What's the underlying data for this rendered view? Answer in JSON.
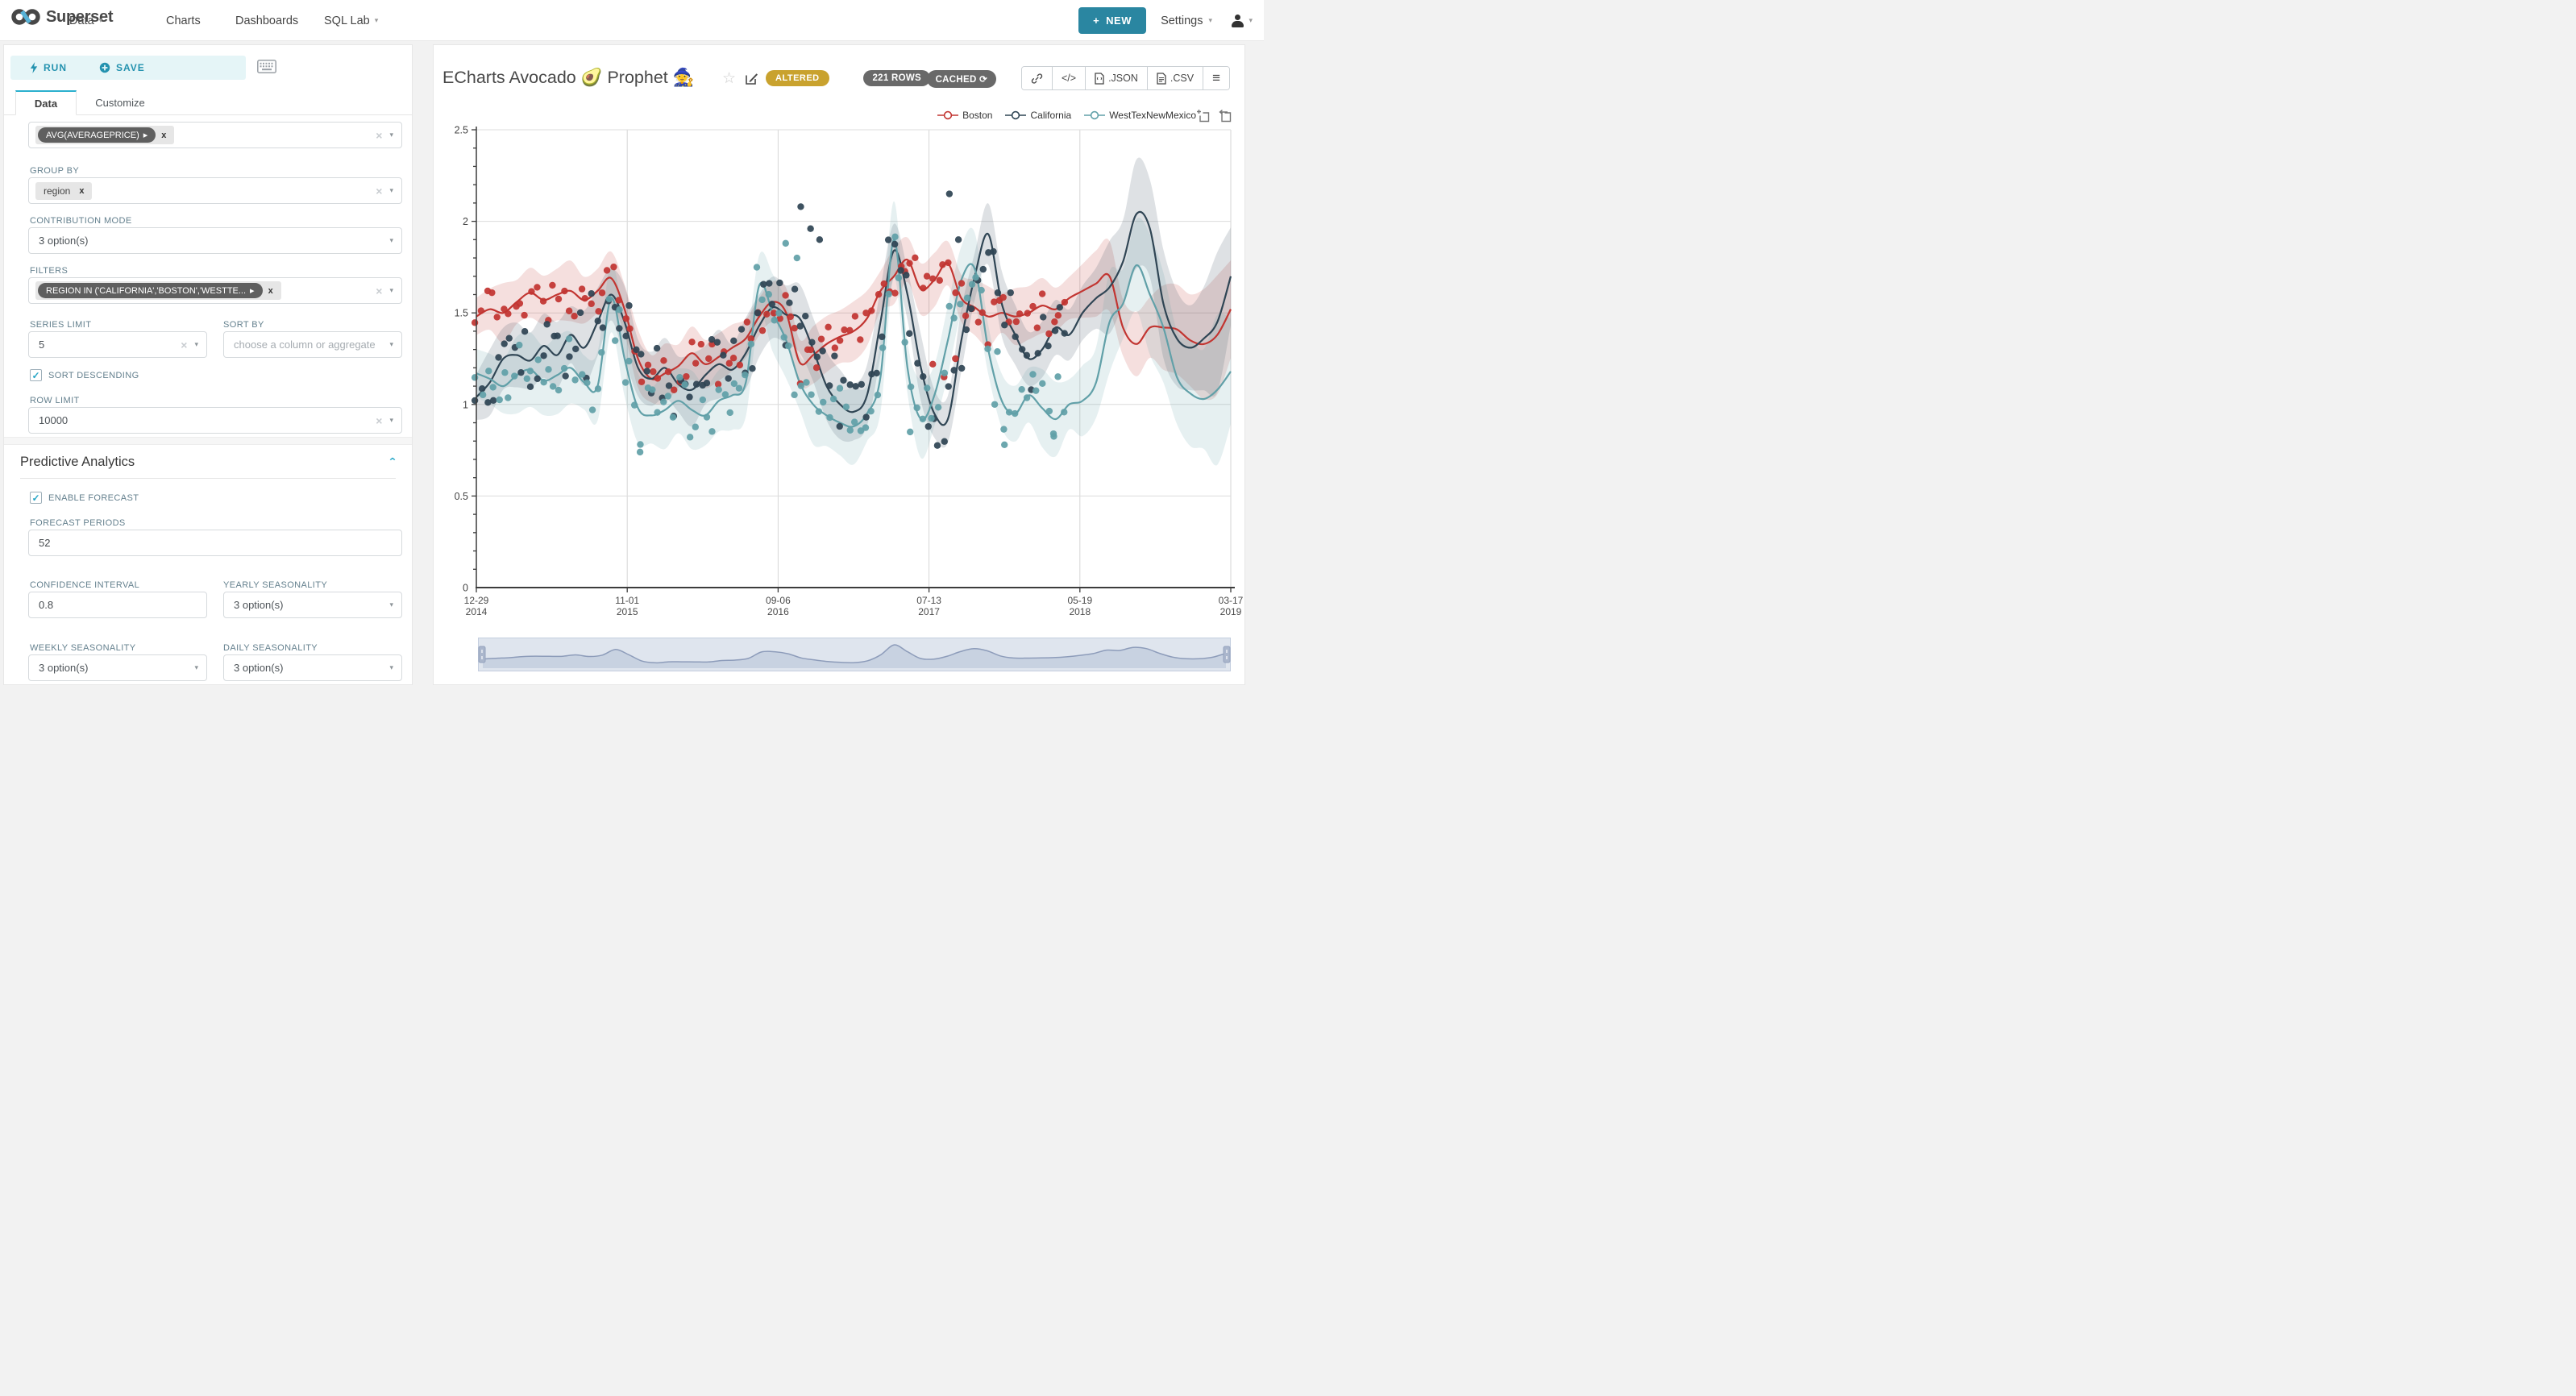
{
  "colors": {
    "accent": "#28a6c6",
    "new_button": "#2a86a1",
    "badge_gold": "#c9a22e",
    "pill_gray": "#696969",
    "boston": "#c23531",
    "california": "#2f4554",
    "westtex": "#61a0a8"
  },
  "icons": {
    "caret_down": "▾",
    "clear": "×",
    "remove_x": "x",
    "pill_arrow": "▸",
    "star": "☆",
    "refresh": "⟳",
    "code": "</​>",
    "menu": "≡",
    "chevron_up": "⌃",
    "check": "✓",
    "plus": "+"
  },
  "navbar": {
    "brand": "Superset",
    "items": [
      {
        "label": "Data",
        "caret": true
      },
      {
        "label": "Charts",
        "caret": false
      },
      {
        "label": "Dashboards",
        "caret": false
      },
      {
        "label": "SQL Lab",
        "caret": true
      }
    ],
    "new_button_label": "NEW",
    "settings_label": "Settings"
  },
  "panel": {
    "run_label": "RUN",
    "save_label": "SAVE",
    "tabs": [
      "Data",
      "Customize"
    ],
    "active_tab": "Data",
    "metrics": {
      "pill": "AVG(AVERAGEPRICE)"
    },
    "group_by": {
      "label": "GROUP BY",
      "pill": "region"
    },
    "contribution_mode": {
      "label": "CONTRIBUTION MODE",
      "value": "3 option(s)"
    },
    "filters": {
      "label": "FILTERS",
      "pill": "REGION IN ('CALIFORNIA','BOSTON','WESTTE..."
    },
    "series_limit": {
      "label": "SERIES LIMIT",
      "value": "5"
    },
    "sort_by": {
      "label": "SORT BY",
      "placeholder": "choose a column or aggregate"
    },
    "sort_descending": {
      "label": "SORT DESCENDING",
      "checked": true
    },
    "row_limit": {
      "label": "ROW LIMIT",
      "value": "10000"
    },
    "section_title": "Predictive Analytics",
    "enable_forecast": {
      "label": "ENABLE FORECAST",
      "checked": true
    },
    "forecast_periods": {
      "label": "FORECAST PERIODS",
      "value": "52"
    },
    "confidence_interval": {
      "label": "CONFIDENCE INTERVAL",
      "value": "0.8"
    },
    "yearly_seasonality": {
      "label": "YEARLY SEASONALITY",
      "value": "3 option(s)"
    },
    "weekly_seasonality": {
      "label": "WEEKLY SEASONALITY",
      "value": "3 option(s)"
    },
    "daily_seasonality": {
      "label": "DAILY SEASONALITY",
      "value": "3 option(s)"
    }
  },
  "header": {
    "title": "ECharts Avocado 🥑 Prophet 🧙",
    "badge": "ALTERED",
    "rows_pill": "221 ROWS",
    "cached_pill": "CACHED",
    "json_label": ".JSON",
    "csv_label": ".CSV"
  },
  "chart_data": {
    "type": "line",
    "subtype": "prophet-forecast: weekly scatter observations + smoothed trend line + confidence band per series",
    "title": "ECharts Avocado 🥑 Prophet 🧙",
    "ylabel": "AVG(AVERAGEPRICE)",
    "ylim": [
      0,
      2.5
    ],
    "y_ticks": [
      0,
      0.5,
      1,
      1.5,
      2,
      2.5
    ],
    "x_tick_labels": [
      [
        "12-29",
        "2014"
      ],
      [
        "11-01",
        "2015"
      ],
      [
        "09-06",
        "2016"
      ],
      [
        "07-13",
        "2017"
      ],
      [
        "05-19",
        "2018"
      ],
      [
        "03-17",
        "2019"
      ]
    ],
    "grid": true,
    "legend_position": "top-right",
    "legend": [
      "Boston",
      "California",
      "WestTexNewMexico"
    ],
    "observed_fraction": 0.78,
    "series": [
      {
        "name": "Boston",
        "color": "#c23531",
        "band_half_width": 0.13,
        "scatter_seed": 7,
        "scatter_amp": 0.17,
        "line": [
          1.48,
          1.52,
          1.5,
          1.56,
          1.61,
          1.57,
          1.6,
          1.62,
          1.57,
          1.62,
          1.69,
          1.52,
          1.25,
          1.14,
          1.17,
          1.21,
          1.28,
          1.22,
          1.26,
          1.31,
          1.36,
          1.48,
          1.56,
          1.5,
          1.23,
          1.27,
          1.33,
          1.37,
          1.4,
          1.47,
          1.62,
          1.7,
          1.79,
          1.63,
          1.68,
          1.77,
          1.58,
          1.53,
          1.48,
          1.5,
          1.48,
          1.5,
          1.54,
          1.52,
          1.58,
          1.62,
          1.66,
          1.7,
          1.42,
          1.33,
          1.42,
          1.42,
          1.41,
          1.35,
          1.33,
          1.38,
          1.52
        ],
        "scatter_outliers": [
          [
            0.605,
            1.22
          ],
          [
            0.62,
            1.15
          ],
          [
            0.635,
            1.25
          ]
        ]
      },
      {
        "name": "California",
        "color": "#2f4554",
        "band_half_width": 0.16,
        "scatter_seed": 13,
        "scatter_amp": 0.24,
        "line": [
          1.04,
          1.12,
          1.25,
          1.27,
          1.24,
          1.32,
          1.27,
          1.38,
          1.31,
          1.45,
          1.6,
          1.45,
          1.2,
          1.14,
          1.2,
          1.11,
          1.08,
          1.16,
          1.22,
          1.19,
          1.28,
          1.43,
          1.53,
          1.49,
          1.47,
          1.3,
          1.1,
          1.0,
          0.96,
          1.05,
          1.45,
          1.84,
          1.6,
          1.2,
          0.95,
          0.92,
          1.35,
          1.7,
          1.93,
          1.55,
          1.38,
          1.25,
          1.3,
          1.42,
          1.38,
          1.5,
          1.58,
          1.64,
          1.78,
          2.04,
          1.96,
          1.55,
          1.36,
          1.31,
          1.36,
          1.45,
          1.7
        ],
        "scatter_outliers": [
          [
            0.43,
            2.08
          ],
          [
            0.443,
            1.96
          ],
          [
            0.455,
            1.9
          ],
          [
            0.627,
            2.15
          ],
          [
            0.639,
            1.9
          ]
        ]
      },
      {
        "name": "WestTexNewMexico",
        "color": "#61a0a8",
        "band_half_width": 0.17,
        "scatter_seed": 29,
        "scatter_amp": 0.24,
        "line": [
          1.17,
          1.14,
          1.1,
          1.16,
          1.19,
          1.13,
          1.16,
          1.2,
          1.12,
          1.1,
          1.58,
          1.25,
          0.98,
          0.94,
          0.97,
          1.02,
          0.97,
          0.94,
          1.02,
          1.05,
          1.12,
          1.65,
          1.5,
          1.35,
          1.12,
          1.0,
          0.94,
          0.9,
          0.88,
          0.95,
          1.15,
          1.9,
          1.2,
          0.92,
          1.05,
          1.35,
          1.68,
          1.74,
          1.3,
          1.02,
          0.95,
          1.05,
          0.98,
          0.92,
          1.0,
          1.02,
          1.12,
          1.45,
          1.55,
          1.76,
          1.6,
          1.42,
          1.15,
          1.06,
          1.03,
          1.08,
          1.18
        ],
        "scatter_outliers": [
          [
            0.217,
            0.74
          ],
          [
            0.41,
            1.88
          ],
          [
            0.425,
            1.8
          ],
          [
            0.575,
            0.85
          ],
          [
            0.7,
            0.78
          ],
          [
            0.765,
            0.84
          ]
        ]
      }
    ]
  }
}
